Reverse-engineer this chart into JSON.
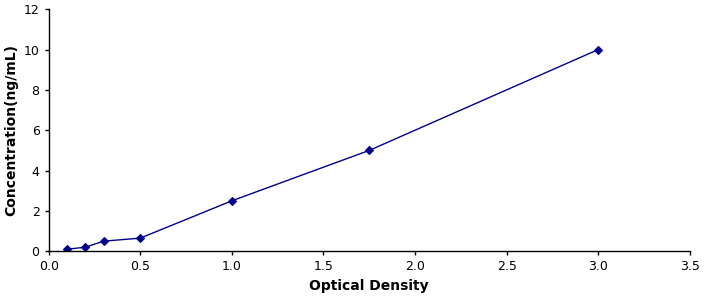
{
  "x_data": [
    0.1,
    0.2,
    0.3,
    0.5,
    1.0,
    1.75,
    3.0
  ],
  "y_data": [
    0.1,
    0.2,
    0.5,
    0.65,
    2.5,
    5.0,
    10.0
  ],
  "line_color": "#00008B",
  "marker_color": "#00008B",
  "marker_style": "D",
  "marker_size": 4,
  "line_width": 1.0,
  "xlabel": "Optical Density",
  "ylabel": "Concentration(ng/mL)",
  "xlim": [
    0,
    3.5
  ],
  "ylim": [
    0,
    12
  ],
  "xticks": [
    0,
    0.5,
    1.0,
    1.5,
    2.0,
    2.5,
    3.0,
    3.5
  ],
  "yticks": [
    0,
    2,
    4,
    6,
    8,
    10,
    12
  ],
  "background_color": "#ffffff",
  "xlabel_fontsize": 10,
  "ylabel_fontsize": 10,
  "tick_fontsize": 9,
  "fig_width": 7.04,
  "fig_height": 2.97,
  "dpi": 100
}
